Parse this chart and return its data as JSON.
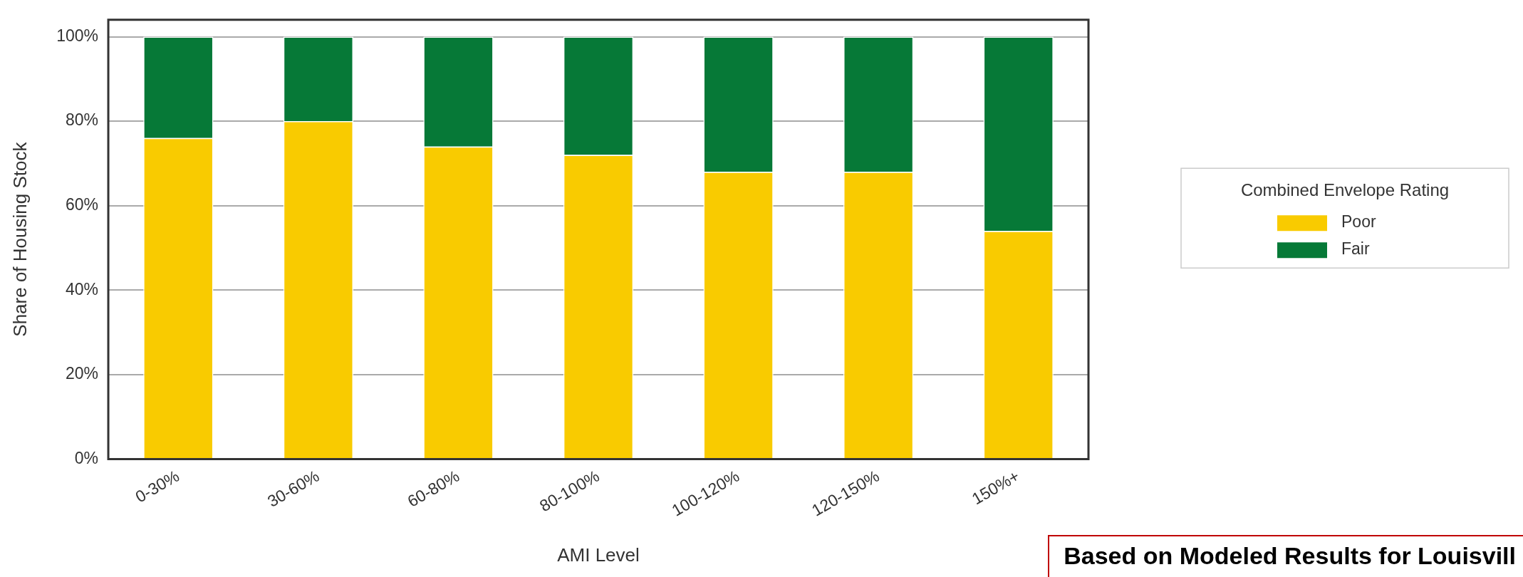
{
  "chart_data": {
    "type": "bar",
    "stacked": true,
    "xlabel": "AMI Level",
    "ylabel": "Share of Housing Stock",
    "legend_title": "Combined Envelope Rating",
    "categories": [
      "0-30%",
      "30-60%",
      "60-80%",
      "80-100%",
      "100-120%",
      "120-150%",
      "150%+"
    ],
    "series": [
      {
        "name": "Poor",
        "color": "#f9cb00",
        "values": [
          76,
          80,
          74,
          72,
          68,
          68,
          54
        ]
      },
      {
        "name": "Fair",
        "color": "#067937",
        "values": [
          24,
          20,
          26,
          28,
          32,
          32,
          46
        ]
      }
    ],
    "ylim": [
      0,
      104
    ],
    "yticks": [
      {
        "value": 0,
        "label": "0%"
      },
      {
        "value": 20,
        "label": "20%"
      },
      {
        "value": 40,
        "label": "40%"
      },
      {
        "value": 60,
        "label": "60%"
      },
      {
        "value": 80,
        "label": "80%"
      },
      {
        "value": 100,
        "label": "100%"
      }
    ],
    "grid": "y",
    "legend": "right",
    "annotations": [
      "Based on Modeled Results for Louisvill"
    ]
  }
}
